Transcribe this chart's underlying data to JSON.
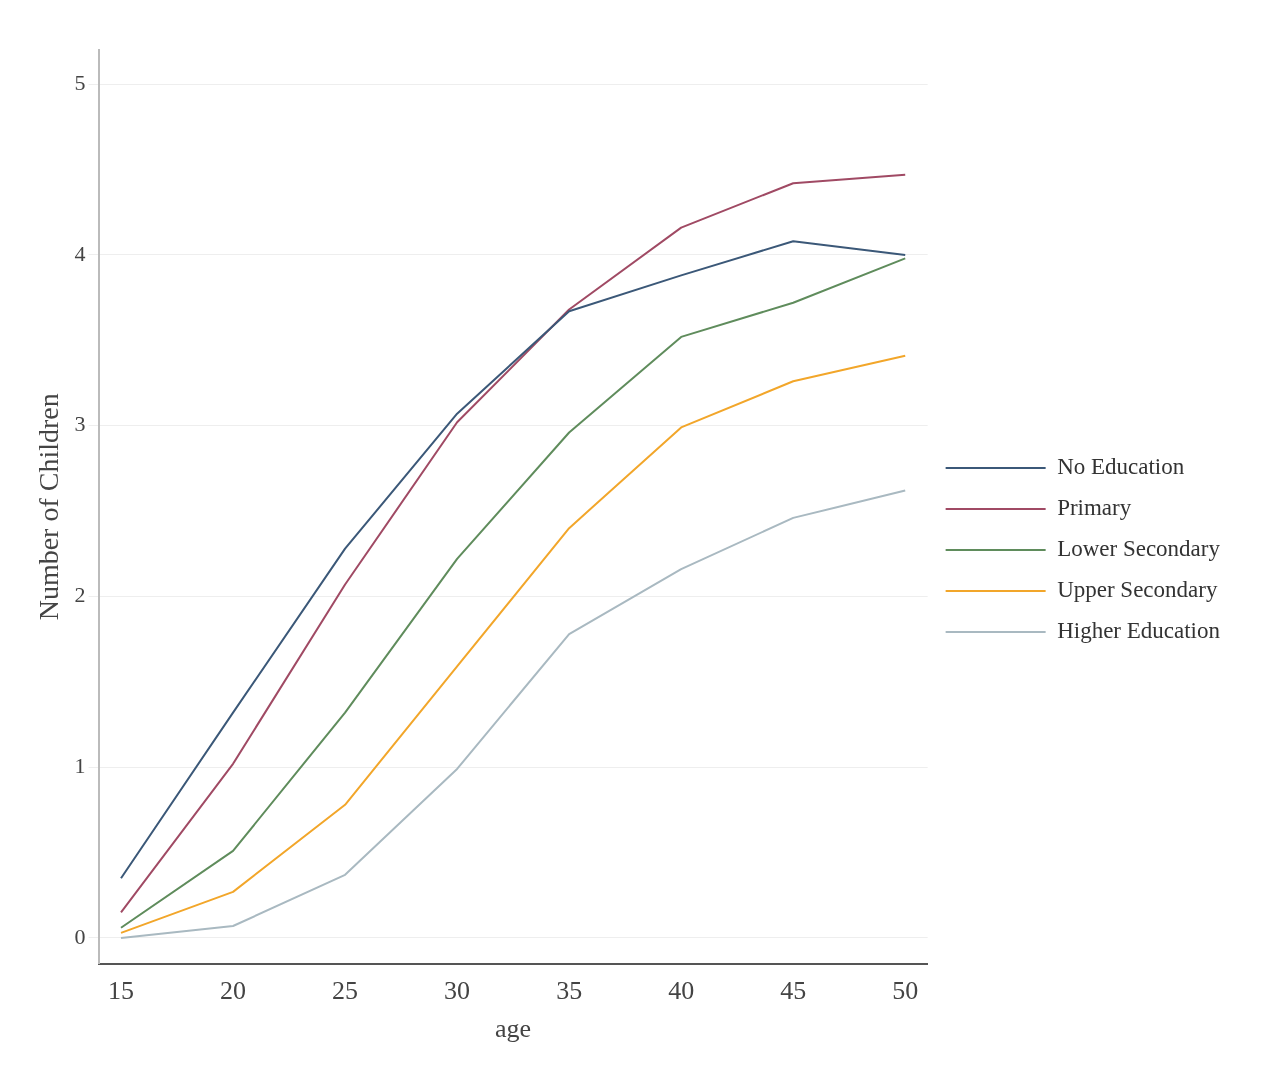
{
  "chart_data": {
    "type": "line",
    "xlabel": "age",
    "ylabel": "Number of Children",
    "x": [
      15,
      20,
      25,
      30,
      35,
      40,
      45,
      50
    ],
    "xlim": [
      14,
      51
    ],
    "xticks": [
      15,
      20,
      25,
      30,
      35,
      40,
      45,
      50
    ],
    "ylim": [
      -0.15,
      5.2
    ],
    "yticks": [
      0,
      1,
      2,
      3,
      4,
      5
    ],
    "grid": "y",
    "legend": "right",
    "marker": "none",
    "line_style": "solid",
    "series": [
      {
        "name": "No Education",
        "color": "#3b5878",
        "values": [
          0.35,
          1.32,
          2.28,
          3.07,
          3.67,
          3.88,
          4.08,
          4.0
        ]
      },
      {
        "name": "Primary",
        "color": "#a04a64",
        "values": [
          0.15,
          1.02,
          2.07,
          3.02,
          3.68,
          4.16,
          4.42,
          4.47
        ]
      },
      {
        "name": "Lower Secondary",
        "color": "#5f8c5c",
        "values": [
          0.06,
          0.51,
          1.32,
          2.22,
          2.96,
          3.52,
          3.72,
          3.98
        ]
      },
      {
        "name": "Upper Secondary",
        "color": "#f2a62a",
        "values": [
          0.03,
          0.27,
          0.78,
          1.59,
          2.4,
          2.99,
          3.26,
          3.41
        ]
      },
      {
        "name": "Higher Education",
        "color": "#a9b9c1",
        "values": [
          0.0,
          0.07,
          0.37,
          0.99,
          1.78,
          2.16,
          2.46,
          2.62
        ]
      }
    ]
  }
}
